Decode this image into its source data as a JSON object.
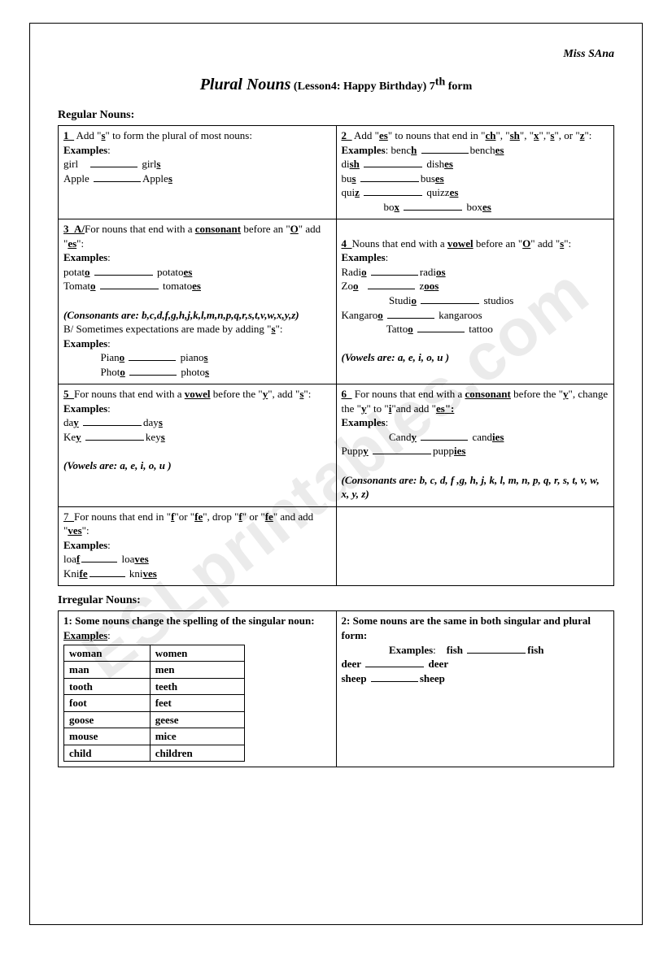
{
  "author": "Miss SAna",
  "title_main": "Plural Nouns",
  "title_sub": " (Lesson4: Happy Birthday) 7",
  "title_sup": "th",
  "title_end": " form",
  "section_regular": "Regular Nouns:",
  "section_irregular": "Irregular Nouns:",
  "watermark": "ESLprintables.com",
  "rule1": {
    "num": "1_",
    "text_a": "  Add \"",
    "s": "s",
    "text_b": "\" to form the plural of most nouns:",
    "ex_label": "Examples",
    "ex1_a": " girl",
    "ex1_b": "girl",
    "ex1_s": "s",
    "ex2_a": "Apple",
    "ex2_b": "Apple",
    "ex2_s": "s"
  },
  "rule2": {
    "num": "2_",
    "text_a": "  Add \"",
    "es": "es",
    "text_b": "\" to nouns that end in \"",
    "ch": "ch",
    "sh": "sh",
    "x": "x",
    "s": "s",
    "z": "z",
    "text_c": "\", \"",
    "text_d": "\",\"",
    "text_e": "\", or \"",
    "text_f": "\":",
    "ex_label": "Examples",
    "ex1_a": "benc",
    "ex1_u": "h",
    "ex1_b": "bench",
    "ex1_s": "es",
    "ex2_a": "di",
    "ex2_u": "sh",
    "ex2_b": "dish",
    "ex2_s": "es",
    "ex3_a": "bu",
    "ex3_u": "s",
    "ex3_b": "bus",
    "ex3_s": "es",
    "ex4_a": "qui",
    "ex4_u": "z",
    "ex4_b": "quizz",
    "ex4_s": "es",
    "ex5_a": "bo",
    "ex5_u": "x",
    "ex5_b": "box",
    "ex5_s": "es"
  },
  "rule3": {
    "num": "3_",
    "part_a": "A/",
    "text_a": "For nouns that end with a ",
    "consonant": "consonant",
    "text_b": " before an \"",
    "O": "O",
    "text_c": "\" add \"",
    "es": "es",
    "text_d": "\":",
    "ex_label": "Examples",
    "ex1_a": "potat",
    "ex1_u": "o",
    "ex1_b": "potato",
    "ex1_s": "es",
    "ex2_a": "Tomat",
    "ex2_u": "o",
    "ex2_b": "tomato",
    "ex2_s": "es",
    "cons_note": "(Consonants are: b,c,d,f,g,h,j,k,l,m,n,p,q,r,s,t,v,w,x,y,z)",
    "part_b": "B/ Sometimes expectations are made by adding \"",
    "s": "s",
    "part_b2": "\":",
    "ex3_a": "Pian",
    "ex3_u": "o",
    "ex3_b": "piano",
    "ex3_s": "s",
    "ex4_a": "Phot",
    "ex4_u": "o",
    "ex4_b": "photo",
    "ex4_s": "s"
  },
  "rule4": {
    "num": "4_",
    "text_a": "Nouns that end with a ",
    "vowel": "vowel",
    "text_b": " before an \"",
    "O": "O",
    "text_c": "\" add \"",
    "s": "s",
    "text_d": "\":",
    "ex_label": "Examples",
    "ex1_a": "Radi",
    "ex1_u": "o",
    "ex1_b": "radi",
    "ex1_bu": "o",
    "ex1_s": "s",
    "ex2_a": "Zo",
    "ex2_u": "o",
    "ex2_b": "z",
    "ex2_bu": "oo",
    "ex2_s": "s",
    "ex3_a": "Studi",
    "ex3_u": "o",
    "ex3_b": "studios",
    "ex4_a": "Kangaro",
    "ex4_u": "o",
    "ex4_b": "kangaroos",
    "ex5_a": "Tatto",
    "ex5_u": "o",
    "ex5_b": "tattoo",
    "vowel_note": "(Vowels are: a, e, i, o, u )"
  },
  "rule5": {
    "num": "5_",
    "text_a": "For nouns that end with a ",
    "vowel": "vowel",
    "text_b": " before the \"",
    "y": "y",
    "text_c": "\", add \"",
    "s": "s",
    "text_d": "\":",
    "ex_label": "Examples",
    "ex1_a": "da",
    "ex1_u": "y",
    "ex1_b": "day",
    "ex1_s": "s",
    "ex2_a": "Ke",
    "ex2_u": "y",
    "ex2_b": "key",
    "ex2_s": "s",
    "vowel_note": "(Vowels are: a, e, i, o, u )"
  },
  "rule6": {
    "num": "6_",
    "text_a": "  For nouns that end with a ",
    "consonant": "consonant",
    "text_b": " before the \"",
    "y": "y",
    "text_c": "\", change the \"",
    "y2": "y",
    "text_d": "\" to \"",
    "i": "i",
    "text_e": "\"and add \"",
    "es": "es",
    "text_f": "\":",
    "ex_label": "Examples",
    "ex1_a": "Cand",
    "ex1_u": "y",
    "ex1_b": "cand",
    "ex1_s": "ies",
    "ex2_a": "Pupp",
    "ex2_u": "y",
    "ex2_b": "pupp",
    "ex2_s": "ies",
    "cons_note": "(Consonants are: b, c, d, f ,g, h, j, k, l, m, n, p, q, r, s, t, v, w, x, y, z)"
  },
  "rule7": {
    "num": "7_",
    "text_a": "For nouns that end in \"",
    "f": "f",
    "text_b": "\"or \"",
    "fe": "fe",
    "text_c": "\", drop \"",
    "f2": "f",
    "text_d": "\" or \"",
    "fe2": "fe",
    "text_e": "\" and add \"",
    "ves": "ves",
    "text_f": "\":",
    "ex_label": "Examples",
    "ex1_a": " loa",
    "ex1_u": "f",
    "ex1_b": "loa",
    "ex1_s": "ves",
    "ex2_a": "Kni",
    "ex2_u": "fe",
    "ex2_b": "kni",
    "ex2_s": "ves"
  },
  "irr1": {
    "num": "1:",
    "text": " Some nouns change the spelling of the singular noun:",
    "ex_label": "Examples",
    "rows": [
      [
        "woman",
        "women"
      ],
      [
        "man",
        "men"
      ],
      [
        "tooth",
        "teeth"
      ],
      [
        "foot",
        "feet"
      ],
      [
        "goose",
        "geese"
      ],
      [
        "mouse",
        "mice"
      ],
      [
        "child",
        "children"
      ]
    ]
  },
  "irr2": {
    "num": "2:",
    "text": " Some nouns are the same in both  singular and plural form:",
    "ex_label": "Examples",
    "ex1_a": "fish",
    "ex1_b": "fish",
    "ex2_a": "deer",
    "ex2_b": "deer",
    "ex3_a": "sheep",
    "ex3_b": "sheep"
  }
}
